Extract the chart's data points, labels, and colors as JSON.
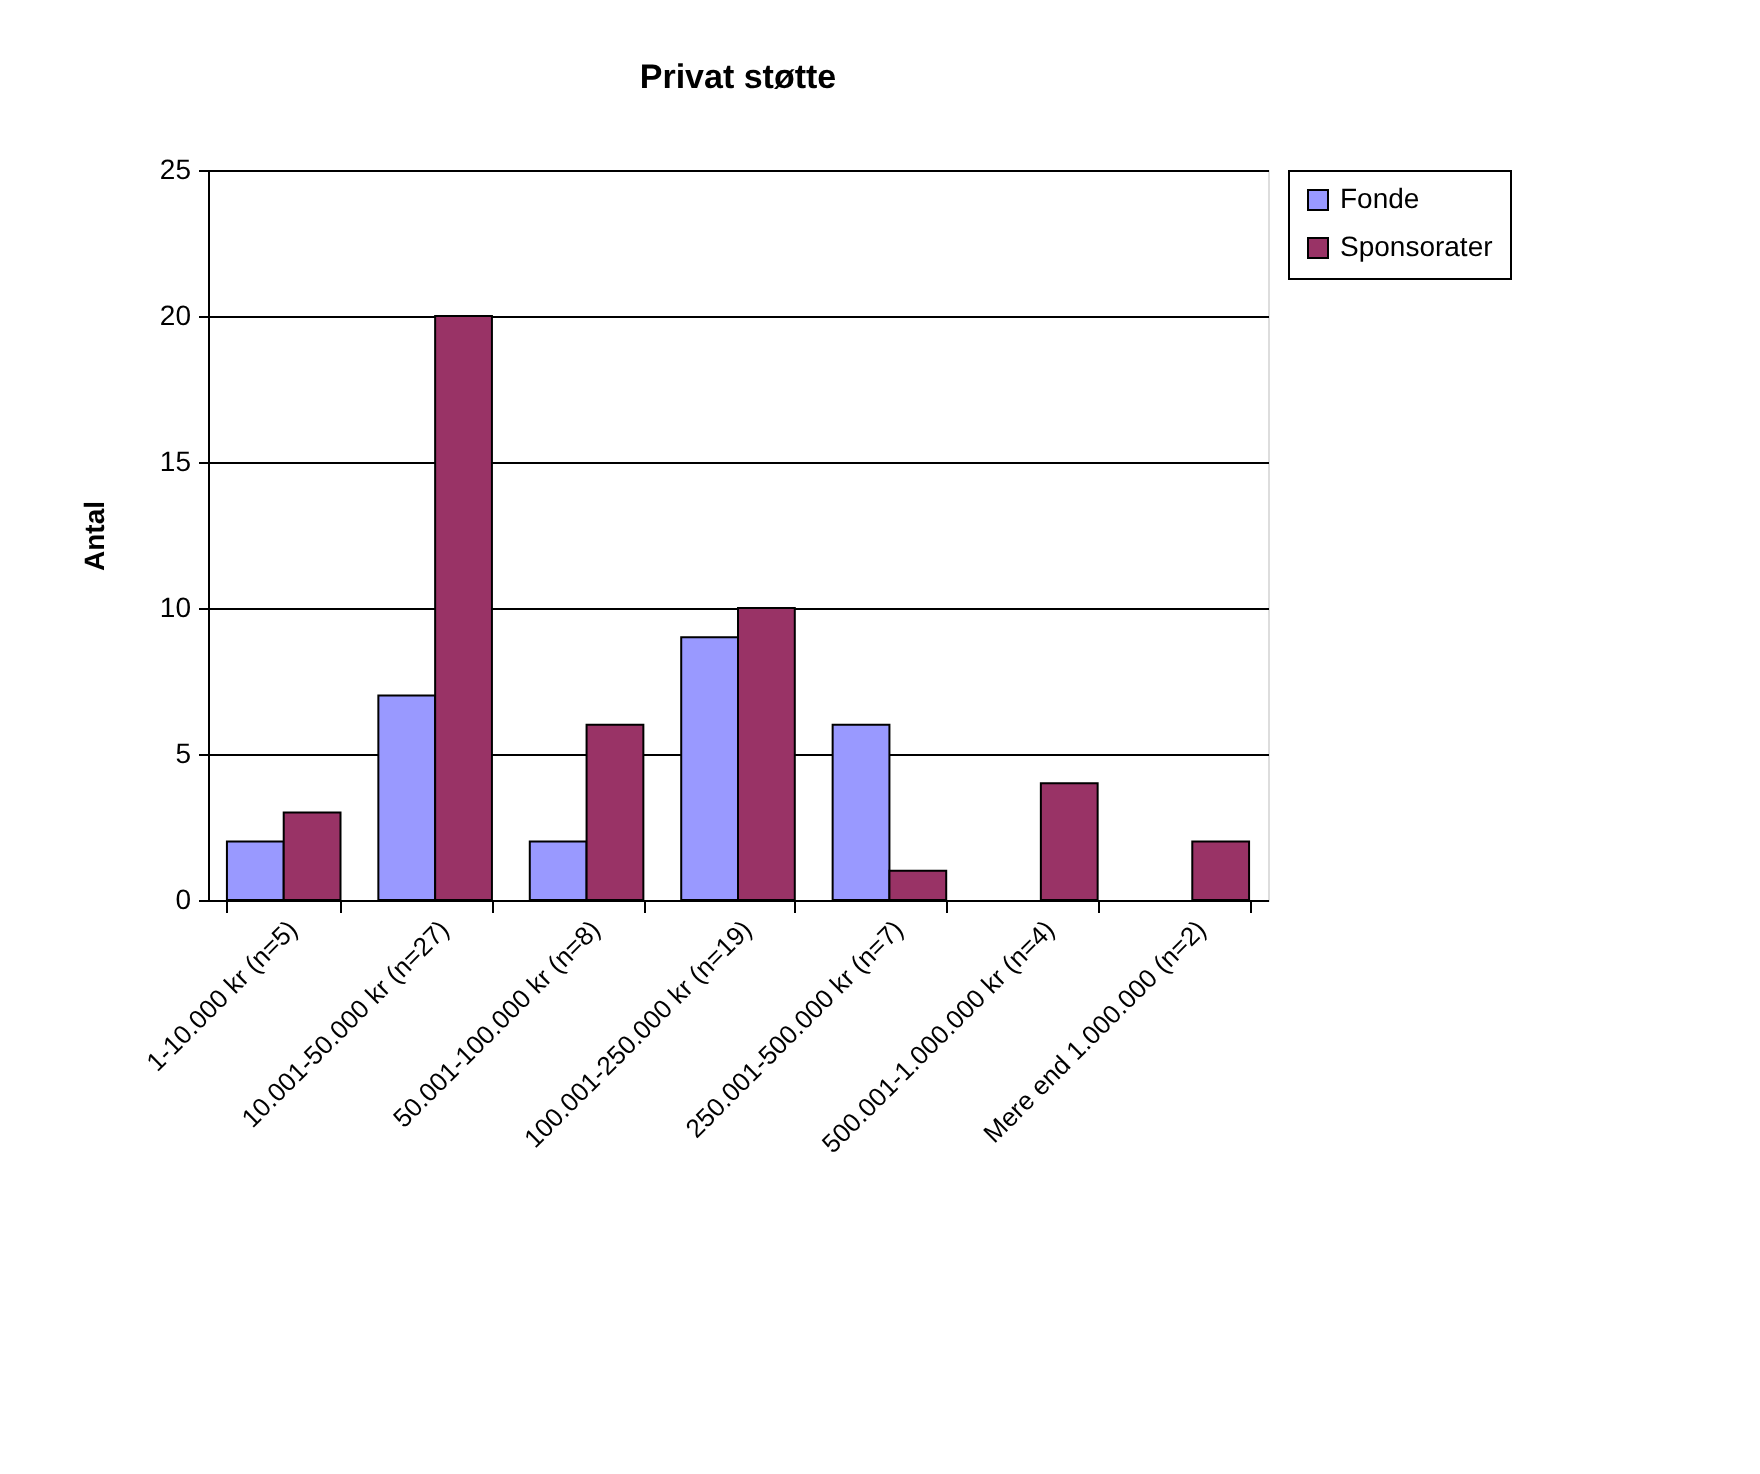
{
  "chart_data": {
    "type": "bar",
    "title": "Privat støtte",
    "ylabel": "Antal",
    "categories": [
      "1-10.000 kr (n=5)",
      "10.001-50.000 kr (n=27)",
      "50.001-100.000 kr (n=8)",
      "100.001-250.000 kr (n=19)",
      "250.001-500.000 kr (n=7)",
      "500.001-1.000.000 kr (n=4)",
      "Mere end 1.000.000 (n=2)"
    ],
    "series": [
      {
        "name": "Fonde",
        "color": "#9999ff",
        "values": [
          2,
          7,
          2,
          9,
          6,
          null,
          null
        ]
      },
      {
        "name": "Sponsorater",
        "color": "#993366",
        "values": [
          3,
          20,
          6,
          10,
          1,
          4,
          2
        ]
      }
    ],
    "ylim": [
      0,
      25
    ],
    "yticks": [
      0,
      5,
      10,
      15,
      20,
      25
    ],
    "grid": "y",
    "legend": "right"
  }
}
